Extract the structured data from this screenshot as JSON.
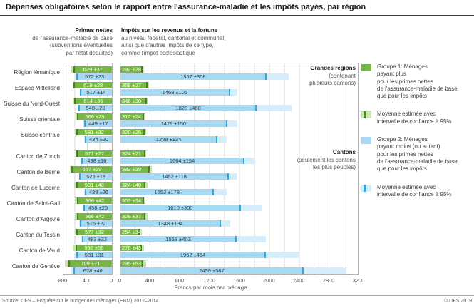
{
  "title": "Dépenses obligatoires selon le rapport entre l'assurance-maladie et les impôts payés, par région",
  "headers": {
    "left_bold": "Primes nettes",
    "left_rest": "de l'assurance-maladie de base\n(subventions éventuelles\npar l'état déduites)",
    "right_bold": "Impôts sur les revenus et la fortune",
    "right_rest": "au niveau fédéral, cantonal et communal,\nainsi que d'autres impôts de ce type,\ncomme l'impôt ecclésiastique"
  },
  "colors": {
    "green_bar": "#76b843",
    "green_ci": "#c9e3ad",
    "green_tick": "#44831e",
    "blue_bar": "#a6d9f3",
    "blue_ci": "#d4edfb",
    "blue_tick": "#2ea9e0"
  },
  "chart_data": {
    "type": "bar",
    "orientation": "horizontal-mirrored",
    "left_axis": {
      "label_implicit": "Primes nettes",
      "max": 800,
      "ticks": [
        800,
        400,
        0
      ]
    },
    "right_axis": {
      "label_implicit": "Impôts",
      "max": 3200,
      "ticks": [
        0,
        400,
        800,
        1200,
        1600,
        2000,
        2400,
        2800,
        3200
      ]
    },
    "xlabel": "Francs par mois par ménage",
    "grid_step": 200,
    "ci_note": "values are mean ±95% confidence interval",
    "sections": [
      {
        "label": "Grandes régions",
        "note": "(contenant\nplusieurs cantons)",
        "rows": [
          {
            "region": "Région lémanique",
            "primes": {
              "g1": {
                "mean": 629,
                "ci": 37
              },
              "g2": {
                "mean": 572,
                "ci": 23
              }
            },
            "impots": {
              "g1": {
                "mean": 292,
                "ci": 28
              },
              "g2": {
                "mean": 1957,
                "ci": 308
              }
            }
          },
          {
            "region": "Espace Mittelland",
            "primes": {
              "g1": {
                "mean": 619,
                "ci": 28
              },
              "g2": {
                "mean": 517,
                "ci": 14
              }
            },
            "impots": {
              "g1": {
                "mean": 358,
                "ci": 27
              },
              "g2": {
                "mean": 1468,
                "ci": 105
              }
            }
          },
          {
            "region": "Suisse du Nord-Ouest",
            "primes": {
              "g1": {
                "mean": 614,
                "ci": 36
              },
              "g2": {
                "mean": 540,
                "ci": 20
              }
            },
            "impots": {
              "g1": {
                "mean": 346,
                "ci": 30
              },
              "g2": {
                "mean": 1828,
                "ci": 480
              }
            }
          },
          {
            "region": "Suisse orientale",
            "primes": {
              "g1": {
                "mean": 566,
                "ci": 29
              },
              "g2": {
                "mean": 449,
                "ci": 17
              }
            },
            "impots": {
              "g1": {
                "mean": 312,
                "ci": 24
              },
              "g2": {
                "mean": 1429,
                "ci": 150
              }
            }
          },
          {
            "region": "Suisse centrale",
            "primes": {
              "g1": {
                "mean": 581,
                "ci": 32
              },
              "g2": {
                "mean": 434,
                "ci": 20
              }
            },
            "impots": {
              "g1": {
                "mean": 320,
                "ci": 25
              },
              "g2": {
                "mean": 1299,
                "ci": 134
              }
            }
          }
        ]
      },
      {
        "label": "Cantons",
        "note": "(seulement les cantons\nles plus peuplés)",
        "rows": [
          {
            "region": "Canton de Zurich",
            "primes": {
              "g1": {
                "mean": 577,
                "ci": 27
              },
              "g2": {
                "mean": 498,
                "ci": 16
              }
            },
            "impots": {
              "g1": {
                "mean": 324,
                "ci": 21
              },
              "g2": {
                "mean": 1664,
                "ci": 154
              }
            }
          },
          {
            "region": "Canton de Berne",
            "primes": {
              "g1": {
                "mean": 657,
                "ci": 39
              },
              "g2": {
                "mean": 525,
                "ci": 18
              }
            },
            "impots": {
              "g1": {
                "mean": 383,
                "ci": 39
              },
              "g2": {
                "mean": 1452,
                "ci": 118
              }
            }
          },
          {
            "region": "Canton de Lucerne",
            "primes": {
              "g1": {
                "mean": 581,
                "ci": 48
              },
              "g2": {
                "mean": 438,
                "ci": 26
              }
            },
            "impots": {
              "g1": {
                "mean": 324,
                "ci": 40
              },
              "g2": {
                "mean": 1253,
                "ci": 178
              }
            }
          },
          {
            "region": "Canton de Saint-Gall",
            "primes": {
              "g1": {
                "mean": 566,
                "ci": 42
              },
              "g2": {
                "mean": 458,
                "ci": 25
              }
            },
            "impots": {
              "g1": {
                "mean": 303,
                "ci": 34
              },
              "g2": {
                "mean": 1610,
                "ci": 300
              }
            }
          },
          {
            "region": "Canton d'Argovie",
            "primes": {
              "g1": {
                "mean": 566,
                "ci": 42
              },
              "g2": {
                "mean": 516,
                "ci": 22
              }
            },
            "impots": {
              "g1": {
                "mean": 329,
                "ci": 37
              },
              "g2": {
                "mean": 1348,
                "ci": 134
              }
            }
          },
          {
            "region": "Canton du Tessin",
            "primes": {
              "g1": {
                "mean": 577,
                "ci": 32
              },
              "g2": {
                "mean": 483,
                "ci": 32
              }
            },
            "impots": {
              "g1": {
                "mean": 254,
                "ci": 34
              },
              "g2": {
                "mean": 1558,
                "ci": 403
              }
            }
          },
          {
            "region": "Canton de Vaud",
            "primes": {
              "g1": {
                "mean": 592,
                "ci": 56
              },
              "g2": {
                "mean": 581,
                "ci": 31
              }
            },
            "impots": {
              "g1": {
                "mean": 276,
                "ci": 43
              },
              "g2": {
                "mean": 1952,
                "ci": 454
              }
            }
          },
          {
            "region": "Canton de Genève",
            "primes": {
              "g1": {
                "mean": 709,
                "ci": 71
              },
              "g2": {
                "mean": 628,
                "ci": 46
              }
            },
            "impots": {
              "g1": {
                "mean": 295,
                "ci": 53
              },
              "g2": {
                "mean": 2459,
                "ci": 587
              }
            }
          }
        ]
      }
    ]
  },
  "axis_title": "Francs par mois par ménage",
  "legend": {
    "items": [
      {
        "swatch": "group1-green-swatch",
        "label": "Groupe 1: Ménages\npayant plus\npour les primes nettes\nde l'assurance-maladie de base\nque pour les impôts"
      },
      {
        "swatch": "green-ci-swatch",
        "label": "Moyenne estimée avec\nintervalle de confiance à 95%"
      },
      {
        "swatch": "group2-blue-swatch",
        "label": "Groupe 2: Ménages\npayant moins (ou autant)\npour les primes nettes\nde l'assurance-maladie de base\nque pour les impôts"
      },
      {
        "swatch": "blue-ci-swatch",
        "label": "Moyenne estimée avec\nintervalle de confiance à 95%"
      }
    ]
  },
  "footer": {
    "source": "Source: OFS – Enquête sur le budget des ménages (EBM) 2012–2014",
    "copyright": "© OFS 2019"
  }
}
